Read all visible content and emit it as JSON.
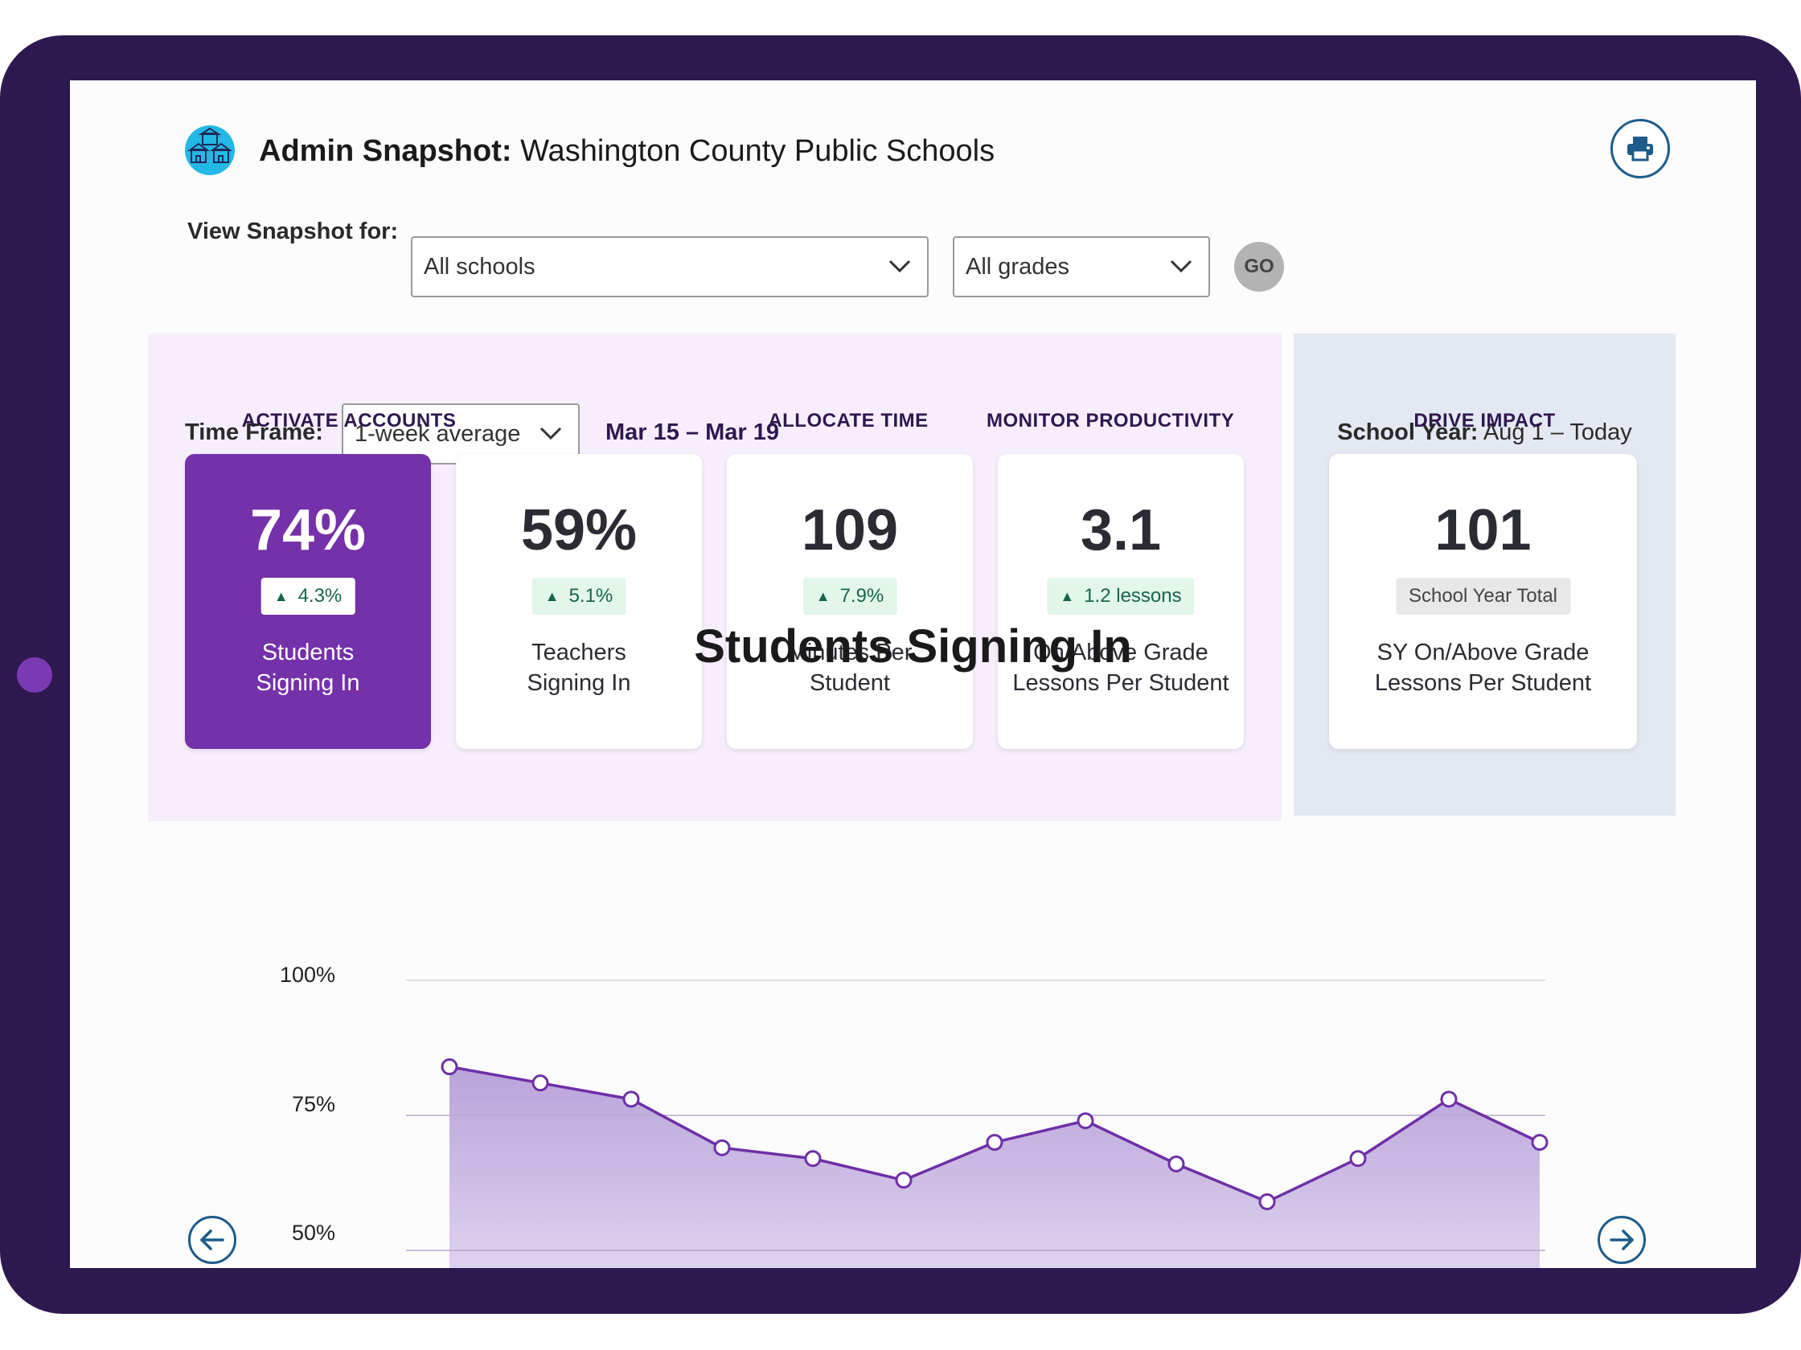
{
  "header": {
    "title_bold": "Admin Snapshot:",
    "title_rest": " Washington County Public Schools"
  },
  "filters": {
    "view_label": "View Snapshot for:",
    "school": "All schools",
    "grade": "All grades",
    "go_label": "GO"
  },
  "timeframe": {
    "label": "Time Frame:",
    "selected": "1-week average",
    "range": "Mar 15 – Mar 19"
  },
  "school_year": {
    "label": "School Year:",
    "value": " Aug 1 – Today"
  },
  "sections": {
    "activate": "ACTIVATE ACCOUNTS",
    "allocate": "ALLOCATE TIME",
    "monitor": "MONITOR PRODUCTIVITY",
    "drive": "DRIVE IMPACT"
  },
  "cards": [
    {
      "value": "74%",
      "badge": "4.3%",
      "label": "Students\nSigning In"
    },
    {
      "value": "59%",
      "badge": "5.1%",
      "label": "Teachers\nSigning In"
    },
    {
      "value": "109",
      "badge": "7.9%",
      "label": "Minutes Per\nStudent"
    },
    {
      "value": "3.1",
      "badge": "1.2 lessons",
      "label": "On/Above Grade\nLessons Per Student"
    },
    {
      "value": "101",
      "badge": "School Year Total",
      "label": "SY On/Above Grade\nLessons Per Student"
    }
  ],
  "icons": {
    "logo": "schools-icon",
    "print": "print-icon",
    "prev": "arrow-left-icon",
    "next": "arrow-right-icon",
    "up": "triangle-up-icon",
    "chevron": "chevron-down-icon"
  },
  "colors": {
    "frame": "#2e1850",
    "accent": "#7431aa",
    "line": "#6e2fa8",
    "area": "#b9a3da",
    "positive": "#17654a"
  },
  "chart_data": {
    "type": "area",
    "title": "Students Signing In",
    "y_ticks": [
      "100%",
      "75%",
      "50%"
    ],
    "ylim": [
      50,
      100
    ],
    "grid": true,
    "series": [
      {
        "values": [
          84,
          81,
          78,
          69,
          67,
          63,
          70,
          74,
          66,
          59,
          67,
          78,
          70
        ]
      }
    ]
  }
}
